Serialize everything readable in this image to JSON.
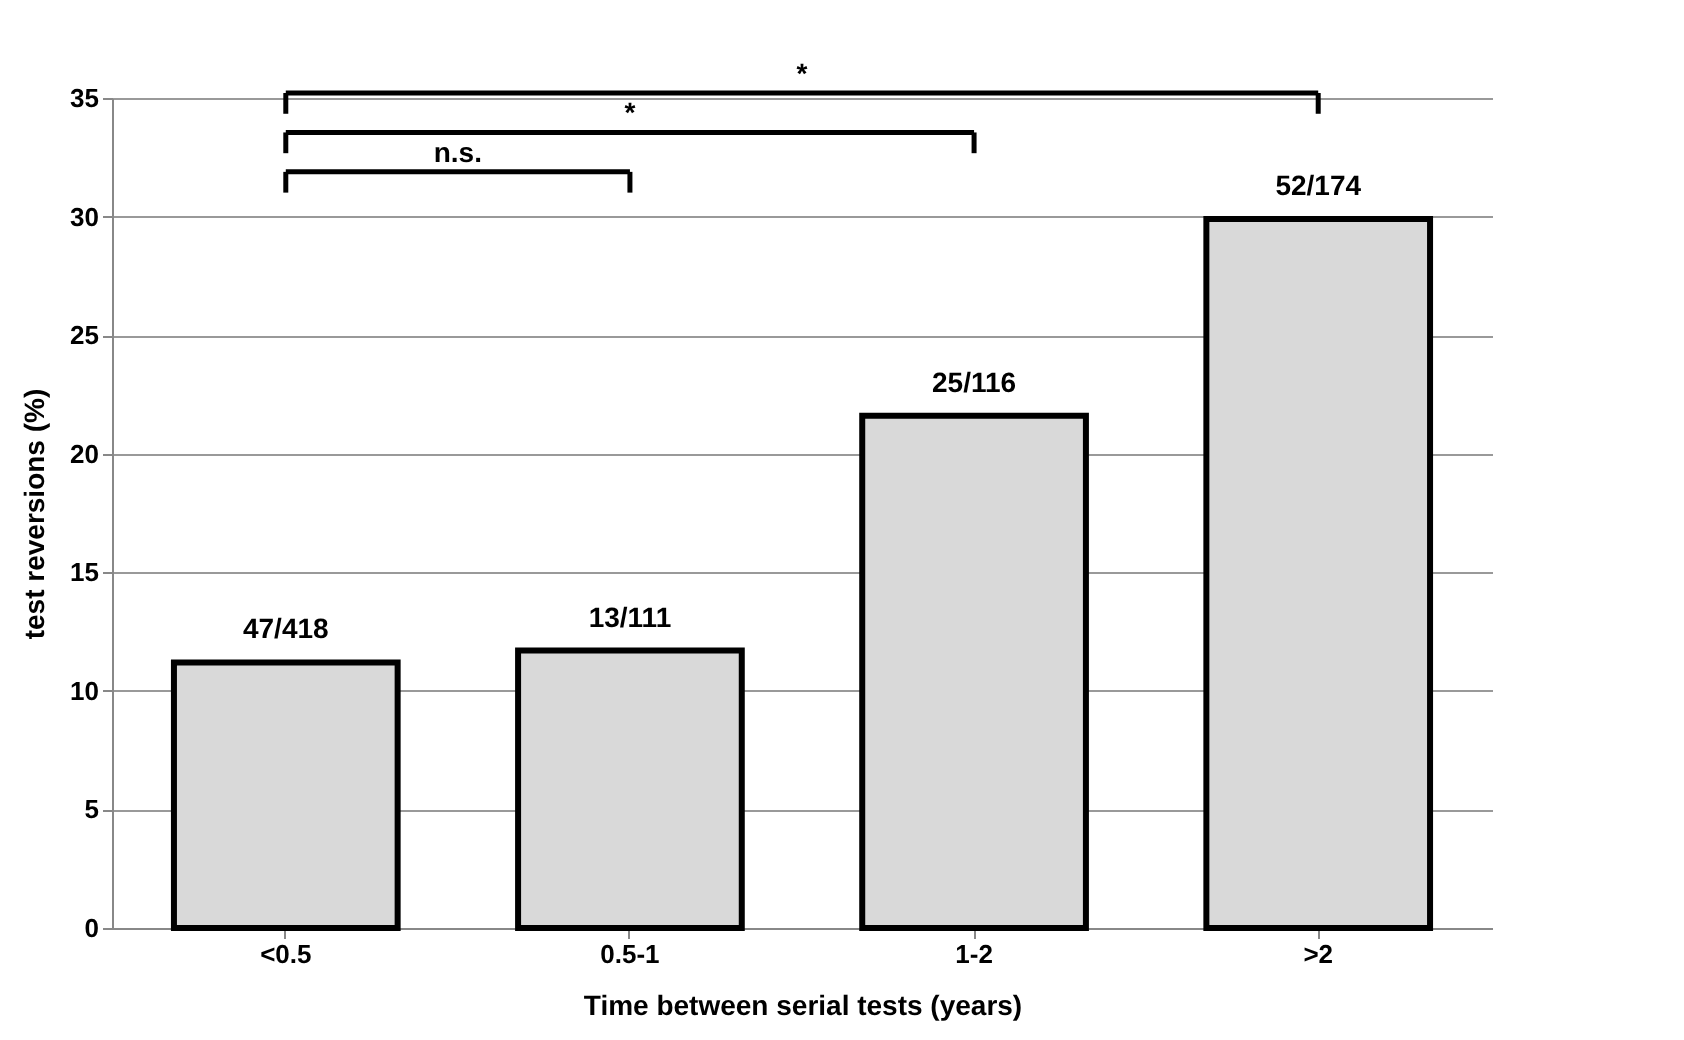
{
  "chart_data": {
    "type": "bar",
    "xlabel": "Time between serial tests (years)",
    "ylabel": "test reversions (%)",
    "categories": [
      "<0.5",
      "0.5-1",
      "1-2",
      ">2"
    ],
    "values": [
      11.2,
      11.7,
      21.6,
      29.9
    ],
    "value_labels": [
      "47/418",
      "13/111",
      "25/116",
      "52/174"
    ],
    "color": "#d9d9d9",
    "ylim": [
      0,
      35
    ],
    "yticks": [
      0,
      5,
      10,
      15,
      20,
      25,
      30,
      35
    ],
    "grid": "y",
    "annotations": [
      "*",
      "*",
      "n.s."
    ]
  }
}
